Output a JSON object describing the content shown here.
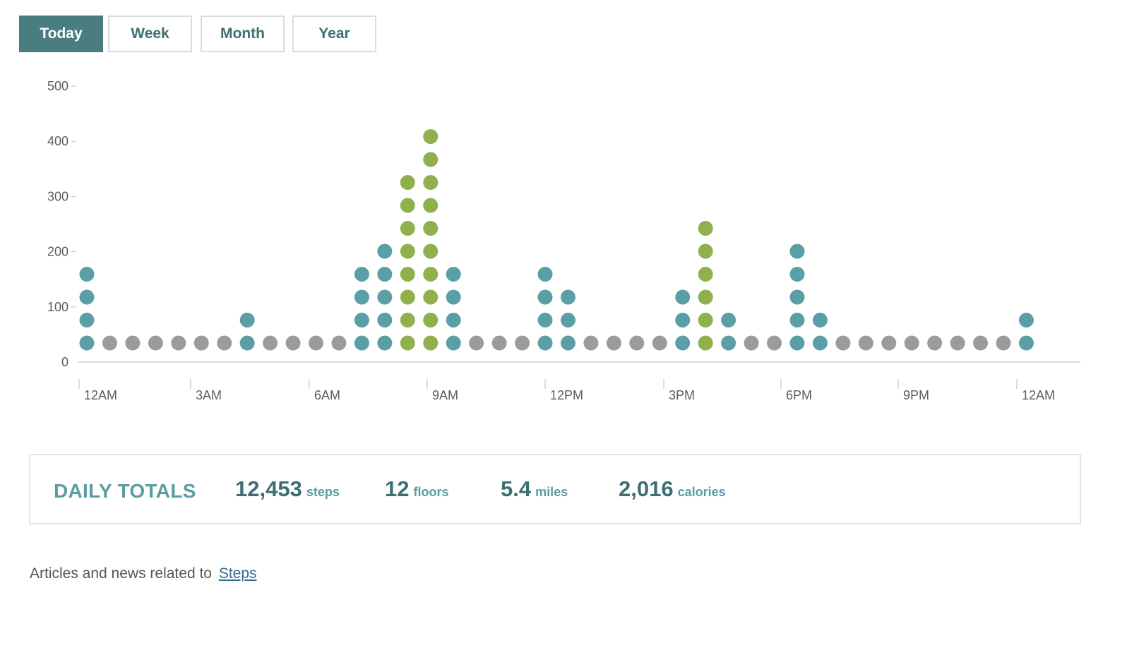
{
  "tabs": [
    {
      "label": "Today",
      "active": true
    },
    {
      "label": "Week",
      "active": false
    },
    {
      "label": "Month",
      "active": false
    },
    {
      "label": "Year",
      "active": false
    }
  ],
  "colors": {
    "accent": "#4a7d80",
    "low": "#5b9fa6",
    "high": "#8fb04c",
    "idle": "#9b9b9b"
  },
  "chart_data": {
    "type": "scatter",
    "title": "",
    "xlabel": "",
    "ylabel": "",
    "ylim": [
      0,
      500
    ],
    "yticks": [
      0,
      100,
      200,
      300,
      400,
      500
    ],
    "xtick_labels": [
      "12AM",
      "3AM",
      "6AM",
      "9AM",
      "12PM",
      "3PM",
      "6PM",
      "9PM",
      "12AM"
    ],
    "interval": "30 minutes",
    "dots_per_interval": [
      4,
      1,
      1,
      1,
      1,
      1,
      1,
      2,
      1,
      1,
      1,
      1,
      4,
      5,
      8,
      10,
      4,
      1,
      1,
      1,
      4,
      3,
      1,
      1,
      1,
      1,
      3,
      6,
      2,
      1,
      1,
      5,
      2,
      1,
      1,
      1,
      1,
      1,
      1,
      1,
      1,
      2
    ],
    "dot_color": [
      "low",
      "idle",
      "idle",
      "idle",
      "idle",
      "idle",
      "idle",
      "low",
      "idle",
      "idle",
      "idle",
      "idle",
      "low",
      "low",
      "high",
      "high",
      "low",
      "idle",
      "idle",
      "idle",
      "low",
      "low",
      "idle",
      "idle",
      "idle",
      "idle",
      "low",
      "high",
      "low",
      "idle",
      "idle",
      "low",
      "low",
      "idle",
      "idle",
      "idle",
      "idle",
      "idle",
      "idle",
      "idle",
      "idle",
      "low"
    ]
  },
  "totals": {
    "title": "DAILY TOTALS",
    "steps": {
      "value": "12,453",
      "unit": "steps"
    },
    "floors": {
      "value": "12",
      "unit": "floors"
    },
    "miles": {
      "value": "5.4",
      "unit": "miles"
    },
    "calories": {
      "value": "2,016",
      "unit": "calories"
    }
  },
  "related": {
    "text": "Articles and news related to",
    "link": "Steps"
  }
}
